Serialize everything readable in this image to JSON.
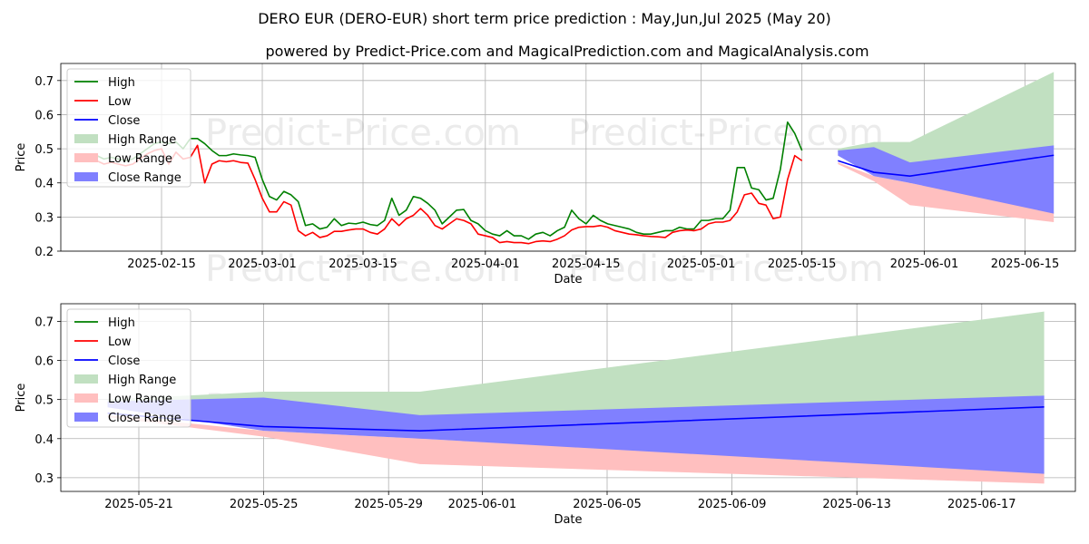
{
  "page": {
    "title": "DERO EUR (DERO-EUR) short term price prediction : May,Jun,Jul 2025 (May 20)",
    "subtitle": "powered by Predict-Price.com and MagicalPrediction.com and MagicalAnalysis.com",
    "watermark": "Predict-Price.com"
  },
  "colors": {
    "high": "#008000",
    "low": "#ff0000",
    "close": "#0000ff",
    "high_range": "#c1e0c1",
    "low_range": "#ffbfbf",
    "close_range": "#8080ff"
  },
  "chart_data": [
    {
      "type": "line",
      "xlabel": "Date",
      "ylabel": "Price",
      "ylim": [
        0.2,
        0.75
      ],
      "yticks": [
        0.2,
        0.3,
        0.4,
        0.5,
        0.6,
        0.7
      ],
      "xticks": [
        "2025-02-15",
        "2025-03-01",
        "2025-03-15",
        "2025-04-01",
        "2025-04-15",
        "2025-05-01",
        "2025-05-15",
        "2025-06-01",
        "2025-06-15"
      ],
      "grid": true,
      "legend": "top-left",
      "legend_labels": [
        "High",
        "Low",
        "Close",
        "High Range",
        "Low Range",
        "Close Range"
      ],
      "history": {
        "start_date": "2025-02-06",
        "high": [
          0.48,
          0.47,
          0.475,
          0.47,
          0.465,
          0.47,
          0.485,
          0.5,
          0.515,
          0.52,
          0.515,
          0.52,
          0.5,
          0.53,
          0.53,
          0.515,
          0.495,
          0.48,
          0.48,
          0.485,
          0.482,
          0.48,
          0.475,
          0.41,
          0.36,
          0.35,
          0.375,
          0.365,
          0.345,
          0.275,
          0.28,
          0.265,
          0.27,
          0.295,
          0.275,
          0.282,
          0.28,
          0.285,
          0.278,
          0.275,
          0.29,
          0.355,
          0.305,
          0.32,
          0.36,
          0.355,
          0.34,
          0.32,
          0.28,
          0.3,
          0.32,
          0.322,
          0.29,
          0.28,
          0.26,
          0.25,
          0.245,
          0.26,
          0.245,
          0.245,
          0.235,
          0.25,
          0.255,
          0.245,
          0.26,
          0.27,
          0.32,
          0.295,
          0.28,
          0.305,
          0.29,
          0.28,
          0.275,
          0.27,
          0.265,
          0.255,
          0.25,
          0.25,
          0.255,
          0.26,
          0.26,
          0.27,
          0.265,
          0.265,
          0.29,
          0.29,
          0.295,
          0.295,
          0.32,
          0.445,
          0.445,
          0.385,
          0.38,
          0.35,
          0.355,
          0.44,
          0.578,
          0.545,
          0.495
        ],
        "low": [
          0.465,
          0.455,
          0.46,
          0.455,
          0.45,
          0.455,
          0.47,
          0.485,
          0.495,
          0.5,
          0.455,
          0.49,
          0.47,
          0.475,
          0.51,
          0.4,
          0.455,
          0.465,
          0.462,
          0.465,
          0.46,
          0.458,
          0.41,
          0.355,
          0.315,
          0.315,
          0.345,
          0.335,
          0.26,
          0.245,
          0.255,
          0.24,
          0.245,
          0.258,
          0.258,
          0.262,
          0.265,
          0.265,
          0.255,
          0.25,
          0.265,
          0.295,
          0.275,
          0.295,
          0.305,
          0.325,
          0.305,
          0.275,
          0.265,
          0.28,
          0.295,
          0.29,
          0.28,
          0.25,
          0.245,
          0.24,
          0.225,
          0.228,
          0.225,
          0.225,
          0.222,
          0.228,
          0.23,
          0.228,
          0.235,
          0.245,
          0.262,
          0.27,
          0.272,
          0.272,
          0.275,
          0.27,
          0.26,
          0.255,
          0.25,
          0.248,
          0.245,
          0.243,
          0.242,
          0.24,
          0.255,
          0.26,
          0.262,
          0.26,
          0.265,
          0.28,
          0.285,
          0.285,
          0.29,
          0.315,
          0.365,
          0.37,
          0.34,
          0.335,
          0.295,
          0.3,
          0.41,
          0.48,
          0.465
        ]
      },
      "prediction": {
        "dates": [
          "2025-05-20",
          "2025-05-25",
          "2025-05-30",
          "2025-06-19"
        ],
        "close": [
          0.465,
          0.431,
          0.42,
          0.481
        ],
        "close_range_upper": [
          0.495,
          0.505,
          0.46,
          0.51
        ],
        "close_range_lower": [
          0.48,
          0.42,
          0.4,
          0.31
        ],
        "high_range_upper": [
          0.5,
          0.52,
          0.52,
          0.725
        ],
        "high_range_lower": [
          0.49,
          0.46,
          0.45,
          0.5
        ],
        "low_range_upper": [
          0.46,
          0.42,
          0.4,
          0.315
        ],
        "low_range_lower": [
          0.455,
          0.405,
          0.335,
          0.285
        ]
      }
    },
    {
      "type": "line",
      "xlabel": "Date",
      "ylabel": "Price",
      "ylim": [
        0.265,
        0.745
      ],
      "yticks": [
        0.3,
        0.4,
        0.5,
        0.6,
        0.7
      ],
      "xticks": [
        "2025-05-21",
        "2025-05-25",
        "2025-05-29",
        "2025-06-01",
        "2025-06-05",
        "2025-06-09",
        "2025-06-13",
        "2025-06-17"
      ],
      "grid": true,
      "legend": "top-left",
      "legend_labels": [
        "High",
        "Low",
        "Close",
        "High Range",
        "Low Range",
        "Close Range"
      ]
    }
  ]
}
